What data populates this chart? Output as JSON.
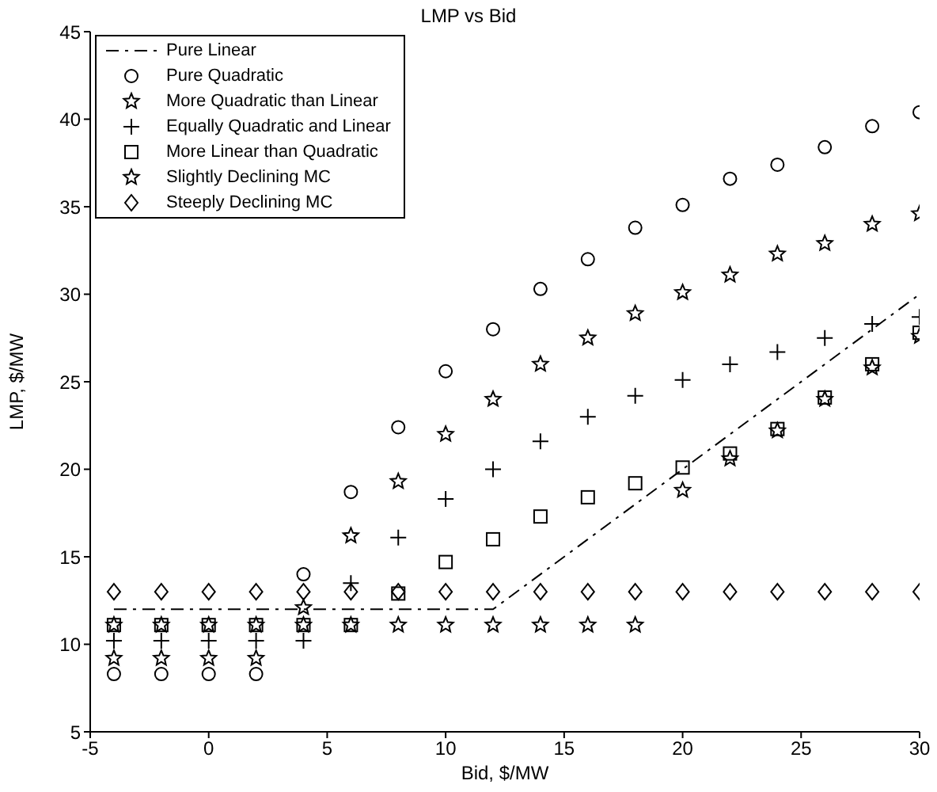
{
  "chart_data": {
    "type": "scatter",
    "title": "LMP vs Bid",
    "xlabel": "Bid, $/MW",
    "ylabel": "LMP, $/MW",
    "x": [
      -4,
      -2,
      0,
      2,
      4,
      6,
      8,
      10,
      12,
      14,
      16,
      18,
      20,
      22,
      24,
      26,
      28,
      30
    ],
    "series": [
      {
        "name": "Pure Linear",
        "type": "line",
        "line_style": "dashed",
        "marker": "none",
        "color": "#000000",
        "values": [
          12,
          12,
          12,
          12,
          12,
          12,
          12,
          12,
          12,
          14,
          16,
          18,
          20,
          22,
          24,
          26,
          28,
          30
        ]
      },
      {
        "name": "Pure Quadratic",
        "marker": "circle",
        "color": "#000000",
        "values": [
          8.3,
          8.3,
          8.3,
          8.3,
          14,
          18.7,
          22.4,
          25.6,
          28,
          30.3,
          32,
          33.8,
          35.1,
          36.6,
          37.4,
          38.4,
          39.6,
          40.4
        ]
      },
      {
        "name": "More Quadratic than Linear",
        "marker": "star",
        "color": "#000000",
        "values": [
          9.2,
          9.2,
          9.2,
          9.2,
          12.1,
          16.2,
          19.3,
          22,
          24,
          26,
          27.5,
          28.9,
          30.1,
          31.1,
          32.3,
          32.9,
          34,
          34.6
        ]
      },
      {
        "name": "Equally Quadratic and Linear",
        "marker": "cross",
        "color": "#000000",
        "values": [
          10.2,
          10.2,
          10.2,
          10.2,
          10.2,
          13.5,
          16.1,
          18.3,
          20,
          21.6,
          23,
          24.2,
          25.1,
          26,
          26.7,
          27.5,
          28.3,
          28.7
        ]
      },
      {
        "name": "More Linear than Quadratic",
        "marker": "square",
        "color": "#000000",
        "values": [
          11.1,
          11.1,
          11.1,
          11.1,
          11.1,
          11.1,
          12.9,
          14.7,
          16,
          17.3,
          18.4,
          19.2,
          20.1,
          20.9,
          22.3,
          24.1,
          26,
          27.8
        ]
      },
      {
        "name": "Slightly Declining MC",
        "marker": "star",
        "color": "#000000",
        "values": [
          11.1,
          11.1,
          11.1,
          11.1,
          11.1,
          11.1,
          11.1,
          11.1,
          11.1,
          11.1,
          11.1,
          11.1,
          18.8,
          20.6,
          22.2,
          24,
          25.8,
          27.6
        ]
      },
      {
        "name": "Steeply Declining MC",
        "marker": "diamond",
        "color": "#000000",
        "values": [
          13,
          13,
          13,
          13,
          13,
          13,
          13,
          13,
          13,
          13,
          13,
          13,
          13,
          13,
          13,
          13,
          13,
          13
        ]
      }
    ],
    "xlim": [
      -5,
      30
    ],
    "xticks": [
      -5,
      0,
      5,
      10,
      15,
      20,
      25,
      30
    ],
    "ylim": [
      5,
      45
    ],
    "yticks": [
      5,
      10,
      15,
      20,
      25,
      30,
      35,
      40,
      45
    ],
    "grid": false,
    "legend": "top left"
  }
}
